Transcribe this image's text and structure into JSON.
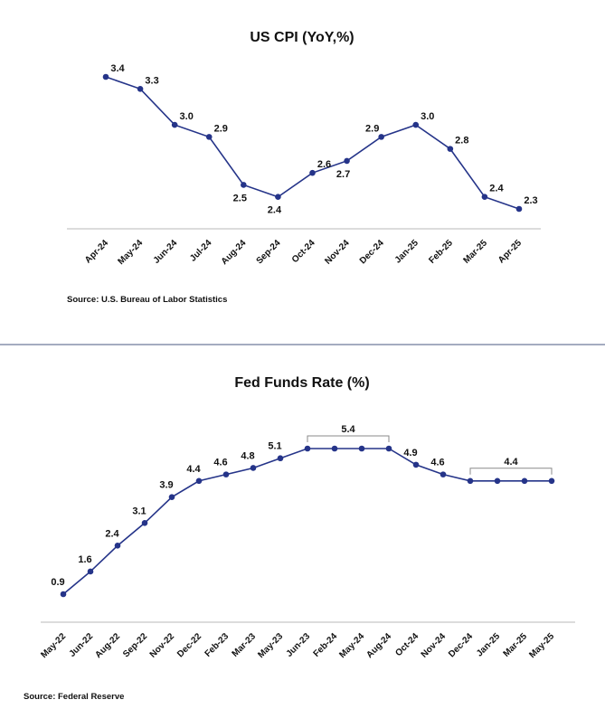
{
  "colors": {
    "line": "#253489",
    "axis": "#c8c8c8",
    "divider": "#4a5a80",
    "text": "#111111"
  },
  "chart_data": [
    {
      "type": "line",
      "title": "US CPI (YoY,%)",
      "xlabel": "",
      "ylabel": "",
      "categories": [
        "Apr-24",
        "May-24",
        "Jun-24",
        "Jul-24",
        "Aug-24",
        "Sep-24",
        "Oct-24",
        "Nov-24",
        "Dec-24",
        "Jan-25",
        "Feb-25",
        "Mar-25",
        "Apr-25"
      ],
      "values": [
        3.4,
        3.3,
        3.0,
        2.9,
        2.5,
        2.4,
        2.6,
        2.7,
        2.9,
        3.0,
        2.8,
        2.4,
        2.3
      ],
      "labels": [
        "3.4",
        "3.3",
        "3.0",
        "2.9",
        "2.5",
        "2.4",
        "2.6",
        "2.7",
        "2.9",
        "3.0",
        "2.8",
        "2.4",
        "2.3"
      ],
      "label_side": [
        "above",
        "above",
        "above",
        "above",
        "below",
        "below",
        "above",
        "below",
        "above-left",
        "above",
        "above",
        "above",
        "above"
      ],
      "ylim": [
        2.3,
        3.4
      ],
      "grid": false,
      "source": "Source: U.S. Bureau of Labor Statistics"
    },
    {
      "type": "line",
      "title": "Fed Funds Rate (%)",
      "xlabel": "",
      "ylabel": "",
      "categories": [
        "May-22",
        "Jun-22",
        "Aug-22",
        "Sep-22",
        "Nov-22",
        "Dec-22",
        "Feb-23",
        "Mar-23",
        "May-23",
        "Jun-23",
        "Feb-24",
        "May-24",
        "Aug-24",
        "Oct-24",
        "Nov-24",
        "Dec-24",
        "Jan-25",
        "Mar-25",
        "May-25"
      ],
      "values": [
        0.9,
        1.6,
        2.4,
        3.1,
        3.9,
        4.4,
        4.6,
        4.8,
        5.1,
        5.4,
        5.4,
        5.4,
        5.4,
        4.9,
        4.6,
        4.4,
        4.4,
        4.4,
        4.4
      ],
      "labels": [
        "0.9",
        "1.6",
        "2.4",
        "3.1",
        "3.9",
        "4.4",
        "4.6",
        "4.8",
        "5.1",
        "",
        "",
        "",
        "",
        "4.9",
        "4.6",
        "",
        "",
        "",
        ""
      ],
      "brackets": [
        {
          "from": 9,
          "to": 12,
          "label": "5.4"
        },
        {
          "from": 15,
          "to": 18,
          "label": "4.4"
        }
      ],
      "ylim": [
        0.9,
        5.4
      ],
      "grid": false,
      "source": "Source: Federal Reserve"
    }
  ]
}
